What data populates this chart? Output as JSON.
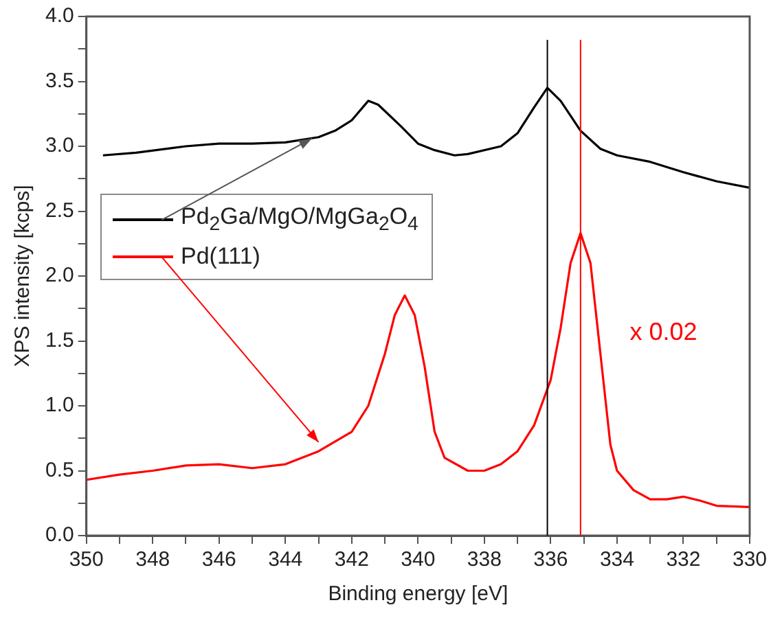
{
  "chart_data": {
    "type": "line",
    "xlabel": "Binding energy [eV]",
    "ylabel": "XPS intensity [kcps]",
    "xlim": [
      350,
      330
    ],
    "ylim": [
      0,
      4.0
    ],
    "xticks": [
      350,
      {
        "value": 349,
        "label": null
      },
      348,
      {
        "value": 347,
        "label": null
      },
      346,
      {
        "value": 345,
        "label": null
      },
      344,
      {
        "value": 343,
        "label": null
      },
      342,
      {
        "value": 341,
        "label": null
      },
      340,
      {
        "value": 339,
        "label": null
      },
      338,
      {
        "value": 337,
        "label": null
      },
      336,
      {
        "value": 335,
        "label": null
      },
      334,
      {
        "value": 333,
        "label": null
      },
      332,
      {
        "value": 331,
        "label": null
      },
      330
    ],
    "yticks": [
      {
        "value": 0,
        "label": "0.0"
      },
      {
        "value": 0.25,
        "label": null
      },
      {
        "value": 0.5,
        "label": "0.5"
      },
      {
        "value": 0.75,
        "label": null
      },
      {
        "value": 1.0,
        "label": "1.0"
      },
      {
        "value": 1.25,
        "label": null
      },
      {
        "value": 1.5,
        "label": "1.5"
      },
      {
        "value": 1.75,
        "label": null
      },
      {
        "value": 2.0,
        "label": "2.0"
      },
      {
        "value": 2.25,
        "label": null
      },
      {
        "value": 2.5,
        "label": "2.5"
      },
      {
        "value": 2.75,
        "label": null
      },
      {
        "value": 3.0,
        "label": "3.0"
      },
      {
        "value": 3.25,
        "label": null
      },
      {
        "value": 3.5,
        "label": "3.5"
      },
      {
        "value": 3.75,
        "label": null
      },
      {
        "value": 4.0,
        "label": "4.0"
      }
    ],
    "grid": false,
    "legend": "left",
    "marker": "none",
    "line_style": "solid",
    "series": [
      {
        "name": "Pd$_{2}$Ga/MgO/MgGa$_{2}$O$_{4}$",
        "color": "#000000",
        "x": [
          349.5,
          348.5,
          347,
          346,
          345,
          344,
          343,
          342.5,
          342,
          341.5,
          341.2,
          340.5,
          340,
          339.5,
          338.9,
          338.5,
          337.5,
          337,
          336.5,
          336.1,
          335.7,
          335.1,
          334.5,
          334,
          333,
          332,
          331,
          330
        ],
        "values": [
          2.93,
          2.95,
          3.0,
          3.02,
          3.02,
          3.03,
          3.07,
          3.12,
          3.2,
          3.35,
          3.32,
          3.15,
          3.02,
          2.97,
          2.93,
          2.94,
          3.0,
          3.1,
          3.3,
          3.45,
          3.35,
          3.12,
          2.98,
          2.93,
          2.88,
          2.8,
          2.73,
          2.68
        ]
      },
      {
        "name": "Pd(111)",
        "color": "#ff0000",
        "x": [
          350,
          349,
          348,
          347,
          346,
          345,
          344,
          343,
          342,
          341.5,
          341,
          340.7,
          340.4,
          340.1,
          339.8,
          339.5,
          339.2,
          338.5,
          338,
          337.5,
          337,
          336.5,
          336,
          335.7,
          335.4,
          335.1,
          334.8,
          334.5,
          334.2,
          334,
          333.5,
          333,
          332.5,
          332,
          331.5,
          331,
          330
        ],
        "values": [
          0.43,
          0.47,
          0.5,
          0.54,
          0.55,
          0.52,
          0.55,
          0.65,
          0.8,
          1.0,
          1.4,
          1.7,
          1.85,
          1.7,
          1.3,
          0.8,
          0.6,
          0.5,
          0.5,
          0.55,
          0.65,
          0.85,
          1.2,
          1.6,
          2.1,
          2.33,
          2.1,
          1.4,
          0.7,
          0.5,
          0.35,
          0.28,
          0.28,
          0.3,
          0.27,
          0.23,
          0.22
        ]
      }
    ],
    "ref_lines": [
      {
        "axis": "x",
        "value": 336.1,
        "color": "#000000"
      },
      {
        "axis": "x",
        "value": 335.1,
        "color": "#ff0000"
      }
    ],
    "annotations": [
      "x 0.02"
    ]
  }
}
